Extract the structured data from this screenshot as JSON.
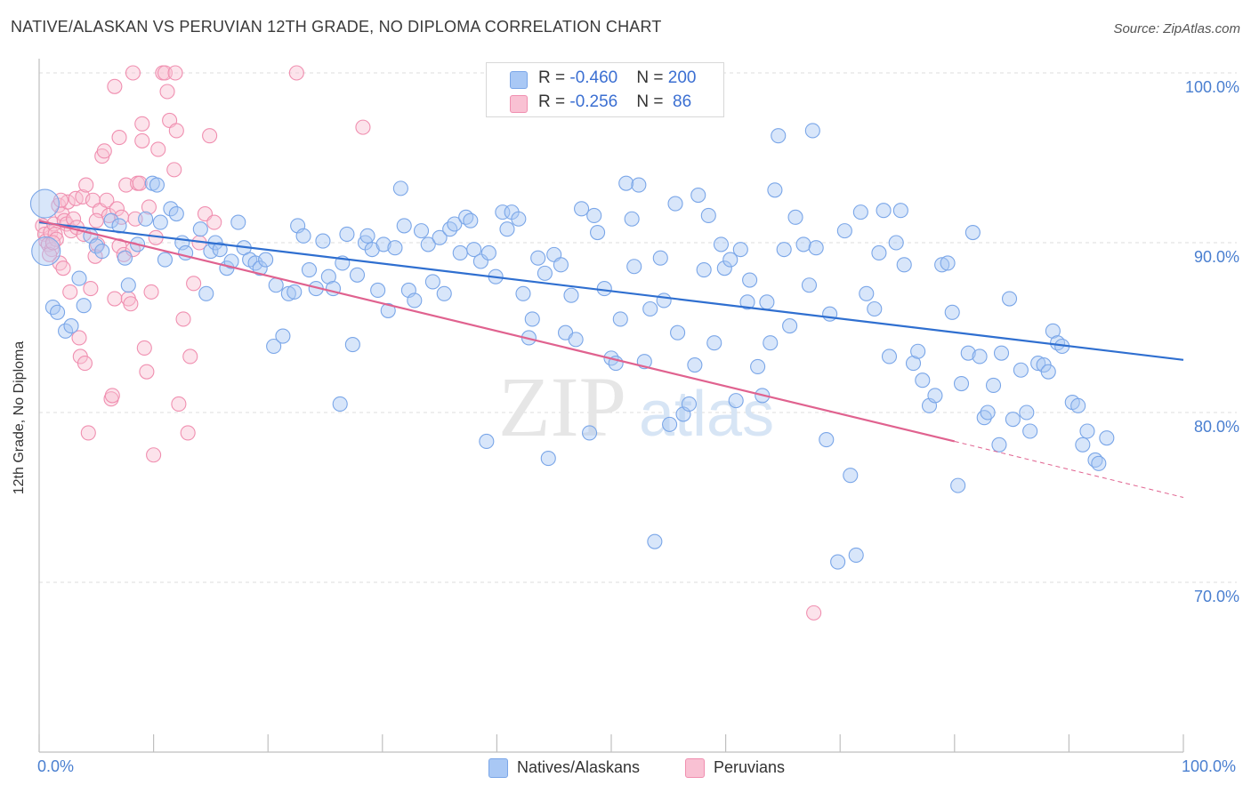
{
  "title": "NATIVE/ALASKAN VS PERUVIAN 12TH GRADE, NO DIPLOMA CORRELATION CHART",
  "source": "Source: ZipAtlas.com",
  "watermark": {
    "zip": "ZIP",
    "atlas": "atlas"
  },
  "legend_top": [
    {
      "r_label": "R = ",
      "r_value": "-0.460",
      "n_label": "N = ",
      "n_value": "200",
      "color": "#7aa6e8"
    },
    {
      "r_label": "R = ",
      "r_value": "-0.256",
      "n_label": "N = ",
      "n_value": " 86",
      "color": "#f08fb0"
    }
  ],
  "legend_bottom": [
    {
      "label": "Natives/Alaskans",
      "color": "#a9c8f5"
    },
    {
      "label": "Peruvians",
      "color": "#f9c1d3"
    }
  ],
  "x_axis_labels": {
    "min": "0.0%",
    "max": "100.0%"
  },
  "chart_data": {
    "type": "scatter",
    "title": "NATIVE/ALASKAN VS PERUVIAN 12TH GRADE, NO DIPLOMA CORRELATION CHART",
    "xlabel": "",
    "ylabel": "12th Grade, No Diploma",
    "xlim": [
      0,
      100
    ],
    "ylim": [
      60,
      100
    ],
    "y_ticks": [
      70,
      80,
      90,
      100
    ],
    "y_tick_labels": [
      "70.0%",
      "80.0%",
      "90.0%",
      "100.0%"
    ],
    "grid": true,
    "legend_position": "top-center",
    "series": [
      {
        "name": "Natives/Alaskans",
        "color": "#7aa6e8",
        "fill": "#a9c8f5",
        "trend": {
          "x": [
            0,
            100
          ],
          "y": [
            91.2,
            83.1
          ]
        },
        "points": [
          [
            0.5,
            92.3
          ],
          [
            0.6,
            89.5
          ],
          [
            1.2,
            86.2
          ],
          [
            1.6,
            85.9
          ],
          [
            2.3,
            84.8
          ],
          [
            2.8,
            85.1
          ],
          [
            3.5,
            87.9
          ],
          [
            3.9,
            86.3
          ],
          [
            4.5,
            90.4
          ],
          [
            5.0,
            89.8
          ],
          [
            5.5,
            89.5
          ],
          [
            6.3,
            91.3
          ],
          [
            7.5,
            89.1
          ],
          [
            7.0,
            91.0
          ],
          [
            7.8,
            87.5
          ],
          [
            8.6,
            89.9
          ],
          [
            9.3,
            91.4
          ],
          [
            9.9,
            93.5
          ],
          [
            10.3,
            93.4
          ],
          [
            10.6,
            91.2
          ],
          [
            11.0,
            89.0
          ],
          [
            11.5,
            92.0
          ],
          [
            12.0,
            91.7
          ],
          [
            12.5,
            90.0
          ],
          [
            12.8,
            89.4
          ],
          [
            14.1,
            90.8
          ],
          [
            14.6,
            87.0
          ],
          [
            15.0,
            89.5
          ],
          [
            15.4,
            90.0
          ],
          [
            15.8,
            89.6
          ],
          [
            16.4,
            88.5
          ],
          [
            16.8,
            88.9
          ],
          [
            17.4,
            91.2
          ],
          [
            17.9,
            89.7
          ],
          [
            18.4,
            89.0
          ],
          [
            18.9,
            88.8
          ],
          [
            19.3,
            88.5
          ],
          [
            19.8,
            89.0
          ],
          [
            20.5,
            83.9
          ],
          [
            20.7,
            87.5
          ],
          [
            21.3,
            84.5
          ],
          [
            21.8,
            87.0
          ],
          [
            22.3,
            87.1
          ],
          [
            22.6,
            91.0
          ],
          [
            23.1,
            90.4
          ],
          [
            23.6,
            88.4
          ],
          [
            24.2,
            87.3
          ],
          [
            24.8,
            90.1
          ],
          [
            25.3,
            88.0
          ],
          [
            25.7,
            87.3
          ],
          [
            26.3,
            80.5
          ],
          [
            26.5,
            88.8
          ],
          [
            26.9,
            90.5
          ],
          [
            27.4,
            84.0
          ],
          [
            27.8,
            88.1
          ],
          [
            28.5,
            90.0
          ],
          [
            28.7,
            90.4
          ],
          [
            29.1,
            89.6
          ],
          [
            29.6,
            87.2
          ],
          [
            30.1,
            89.9
          ],
          [
            30.5,
            86.0
          ],
          [
            31.1,
            89.7
          ],
          [
            31.6,
            93.2
          ],
          [
            31.9,
            91.0
          ],
          [
            32.3,
            87.2
          ],
          [
            32.8,
            86.6
          ],
          [
            33.4,
            90.7
          ],
          [
            34.0,
            89.9
          ],
          [
            34.4,
            87.7
          ],
          [
            35.0,
            90.3
          ],
          [
            35.4,
            87.0
          ],
          [
            35.9,
            90.8
          ],
          [
            36.3,
            91.1
          ],
          [
            36.8,
            89.4
          ],
          [
            37.3,
            91.5
          ],
          [
            37.7,
            91.3
          ],
          [
            38.0,
            89.6
          ],
          [
            38.6,
            88.9
          ],
          [
            39.1,
            78.3
          ],
          [
            39.3,
            89.4
          ],
          [
            39.9,
            88.0
          ],
          [
            40.5,
            91.8
          ],
          [
            40.9,
            90.8
          ],
          [
            41.3,
            91.8
          ],
          [
            41.9,
            91.4
          ],
          [
            42.3,
            87.0
          ],
          [
            42.8,
            84.4
          ],
          [
            43.1,
            85.5
          ],
          [
            43.6,
            89.1
          ],
          [
            44.2,
            88.2
          ],
          [
            44.5,
            77.3
          ],
          [
            45.0,
            89.3
          ],
          [
            45.6,
            88.7
          ],
          [
            46.0,
            84.7
          ],
          [
            46.5,
            86.9
          ],
          [
            46.9,
            84.3
          ],
          [
            47.4,
            92.0
          ],
          [
            48.1,
            78.8
          ],
          [
            48.5,
            91.6
          ],
          [
            48.8,
            90.6
          ],
          [
            49.4,
            87.3
          ],
          [
            50.0,
            83.2
          ],
          [
            50.4,
            82.9
          ],
          [
            50.8,
            85.5
          ],
          [
            51.3,
            93.5
          ],
          [
            51.8,
            91.4
          ],
          [
            52.0,
            88.6
          ],
          [
            52.4,
            93.4
          ],
          [
            52.9,
            83.0
          ],
          [
            53.4,
            86.1
          ],
          [
            53.8,
            72.4
          ],
          [
            54.3,
            89.1
          ],
          [
            54.6,
            86.6
          ],
          [
            55.1,
            79.3
          ],
          [
            55.6,
            92.3
          ],
          [
            55.8,
            84.7
          ],
          [
            56.3,
            79.9
          ],
          [
            56.8,
            80.5
          ],
          [
            57.3,
            82.8
          ],
          [
            57.6,
            92.8
          ],
          [
            58.1,
            88.4
          ],
          [
            58.5,
            91.6
          ],
          [
            59.0,
            84.1
          ],
          [
            59.6,
            89.9
          ],
          [
            59.9,
            88.5
          ],
          [
            60.4,
            89.0
          ],
          [
            60.9,
            80.7
          ],
          [
            61.3,
            89.6
          ],
          [
            61.9,
            86.5
          ],
          [
            62.1,
            87.8
          ],
          [
            62.8,
            82.7
          ],
          [
            63.2,
            81.0
          ],
          [
            63.6,
            86.5
          ],
          [
            63.9,
            84.1
          ],
          [
            64.3,
            93.1
          ],
          [
            64.6,
            96.3
          ],
          [
            65.1,
            89.6
          ],
          [
            65.6,
            85.1
          ],
          [
            66.1,
            91.5
          ],
          [
            66.8,
            89.9
          ],
          [
            67.3,
            87.5
          ],
          [
            67.6,
            96.6
          ],
          [
            67.9,
            89.7
          ],
          [
            68.8,
            78.4
          ],
          [
            69.1,
            85.8
          ],
          [
            69.8,
            71.2
          ],
          [
            70.4,
            90.7
          ],
          [
            70.9,
            76.3
          ],
          [
            71.4,
            71.6
          ],
          [
            71.8,
            91.8
          ],
          [
            72.3,
            87.0
          ],
          [
            73.0,
            86.1
          ],
          [
            73.4,
            89.4
          ],
          [
            73.8,
            91.9
          ],
          [
            74.3,
            83.3
          ],
          [
            74.9,
            90.0
          ],
          [
            75.3,
            91.9
          ],
          [
            75.6,
            88.7
          ],
          [
            76.4,
            82.9
          ],
          [
            76.8,
            83.6
          ],
          [
            77.2,
            81.9
          ],
          [
            77.8,
            80.4
          ],
          [
            78.3,
            81.0
          ],
          [
            78.9,
            88.7
          ],
          [
            79.4,
            88.8
          ],
          [
            79.8,
            85.9
          ],
          [
            80.3,
            75.7
          ],
          [
            80.6,
            81.7
          ],
          [
            81.2,
            83.5
          ],
          [
            81.6,
            90.6
          ],
          [
            82.2,
            83.3
          ],
          [
            82.6,
            79.7
          ],
          [
            82.9,
            80.0
          ],
          [
            83.4,
            81.6
          ],
          [
            83.9,
            78.1
          ],
          [
            84.1,
            83.5
          ],
          [
            84.8,
            86.7
          ],
          [
            85.1,
            79.6
          ],
          [
            85.8,
            82.5
          ],
          [
            86.3,
            80.0
          ],
          [
            86.6,
            78.9
          ],
          [
            87.3,
            82.9
          ],
          [
            87.8,
            82.8
          ],
          [
            88.2,
            82.4
          ],
          [
            88.6,
            84.8
          ],
          [
            89.0,
            84.1
          ],
          [
            89.4,
            83.9
          ],
          [
            90.3,
            80.6
          ],
          [
            90.8,
            80.4
          ],
          [
            91.2,
            78.1
          ],
          [
            91.6,
            78.9
          ],
          [
            92.3,
            77.2
          ],
          [
            92.6,
            77.0
          ],
          [
            93.3,
            78.5
          ],
          [
            58.8,
            98.9
          ]
        ]
      },
      {
        "name": "Peruvians",
        "color": "#f08fb0",
        "fill": "#f9c1d3",
        "trend": {
          "x": [
            0,
            80
          ],
          "y": [
            91.3,
            78.3
          ]
        },
        "trend_dashed": {
          "x": [
            80,
            100
          ],
          "y": [
            78.3,
            75.0
          ]
        },
        "points": [
          [
            0.3,
            91.0
          ],
          [
            0.5,
            90.5
          ],
          [
            0.6,
            90.1
          ],
          [
            0.8,
            89.9
          ],
          [
            1.0,
            90.6
          ],
          [
            1.1,
            89.6
          ],
          [
            1.3,
            91.1
          ],
          [
            1.4,
            90.5
          ],
          [
            1.5,
            90.2
          ],
          [
            1.7,
            92.2
          ],
          [
            1.8,
            88.8
          ],
          [
            2.0,
            91.7
          ],
          [
            2.2,
            91.3
          ],
          [
            2.4,
            91.1
          ],
          [
            2.5,
            92.4
          ],
          [
            2.7,
            87.1
          ],
          [
            2.8,
            90.7
          ],
          [
            3.0,
            91.4
          ],
          [
            3.2,
            92.6
          ],
          [
            3.3,
            90.9
          ],
          [
            3.5,
            84.4
          ],
          [
            3.6,
            83.3
          ],
          [
            3.8,
            92.7
          ],
          [
            4.0,
            82.9
          ],
          [
            4.1,
            93.4
          ],
          [
            4.3,
            78.8
          ],
          [
            4.5,
            87.3
          ],
          [
            4.7,
            92.5
          ],
          [
            4.9,
            89.2
          ],
          [
            5.1,
            89.9
          ],
          [
            5.3,
            91.9
          ],
          [
            5.5,
            95.1
          ],
          [
            5.7,
            95.4
          ],
          [
            5.9,
            92.5
          ],
          [
            6.1,
            91.6
          ],
          [
            6.3,
            80.8
          ],
          [
            6.4,
            81.0
          ],
          [
            6.6,
            86.7
          ],
          [
            6.8,
            92.0
          ],
          [
            7.0,
            89.8
          ],
          [
            7.2,
            91.5
          ],
          [
            7.4,
            89.3
          ],
          [
            7.6,
            93.4
          ],
          [
            7.8,
            86.7
          ],
          [
            8.0,
            86.4
          ],
          [
            8.2,
            89.6
          ],
          [
            8.4,
            91.4
          ],
          [
            8.6,
            93.5
          ],
          [
            8.8,
            93.5
          ],
          [
            9.0,
            96.0
          ],
          [
            9.2,
            83.8
          ],
          [
            9.4,
            82.4
          ],
          [
            9.6,
            92.1
          ],
          [
            9.8,
            87.1
          ],
          [
            10.0,
            77.5
          ],
          [
            10.2,
            90.3
          ],
          [
            10.4,
            95.5
          ],
          [
            10.8,
            100.0
          ],
          [
            11.0,
            100.0
          ],
          [
            11.2,
            98.9
          ],
          [
            11.4,
            97.2
          ],
          [
            11.8,
            94.3
          ],
          [
            12.2,
            80.5
          ],
          [
            12.6,
            85.5
          ],
          [
            13.0,
            78.8
          ],
          [
            13.2,
            83.3
          ],
          [
            13.5,
            87.6
          ],
          [
            14.0,
            90.0
          ],
          [
            14.5,
            91.7
          ],
          [
            14.9,
            96.3
          ],
          [
            15.3,
            91.2
          ],
          [
            12.0,
            96.6
          ],
          [
            9.0,
            97.0
          ],
          [
            8.2,
            100.0
          ],
          [
            11.9,
            100.0
          ],
          [
            22.5,
            100.0
          ],
          [
            28.3,
            96.8
          ],
          [
            6.6,
            99.2
          ],
          [
            7.0,
            96.2
          ],
          [
            67.7,
            68.2
          ],
          [
            1.9,
            92.5
          ],
          [
            2.1,
            88.5
          ],
          [
            3.9,
            90.5
          ],
          [
            5.0,
            91.3
          ],
          [
            0.9,
            89.3
          ],
          [
            1.2,
            90.0
          ]
        ]
      }
    ]
  }
}
